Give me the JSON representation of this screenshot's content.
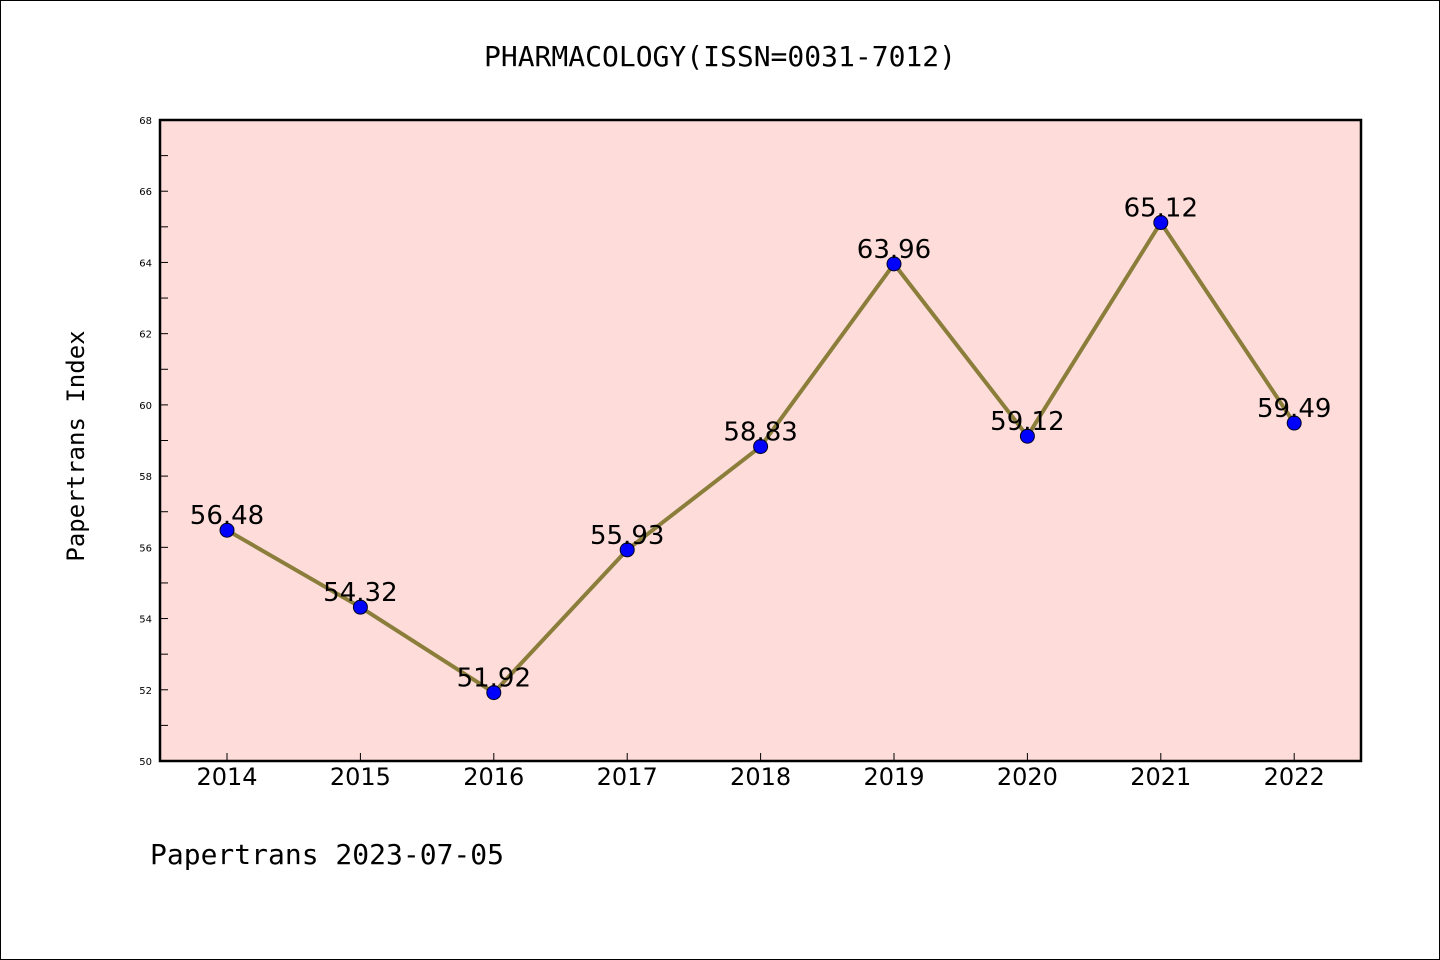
{
  "chart_data": {
    "type": "line",
    "title": "PHARMACOLOGY(ISSN=0031-7012)",
    "xlabel": "",
    "ylabel": "Papertrans Index",
    "categories": [
      "2014",
      "2015",
      "2016",
      "2017",
      "2018",
      "2019",
      "2020",
      "2021",
      "2022"
    ],
    "series": [
      {
        "values": [
          56.48,
          54.32,
          51.92,
          55.93,
          58.83,
          63.96,
          59.12,
          65.12,
          59.49
        ]
      }
    ],
    "data_labels": [
      "56.48",
      "54.32",
      "51.92",
      "55.93",
      "58.83",
      "63.96",
      "59.12",
      "65.12",
      "59.49"
    ],
    "ylim": [
      50,
      68
    ],
    "yticks": [
      50,
      52,
      54,
      56,
      58,
      60,
      62,
      64,
      66,
      68
    ],
    "grid": false,
    "legend": "none",
    "colors": {
      "plot_background": "#FDDCDA",
      "line": "#8B7D3A",
      "marker": "#0000FF"
    }
  },
  "footer": {
    "text": "Papertrans 2023-07-05"
  }
}
